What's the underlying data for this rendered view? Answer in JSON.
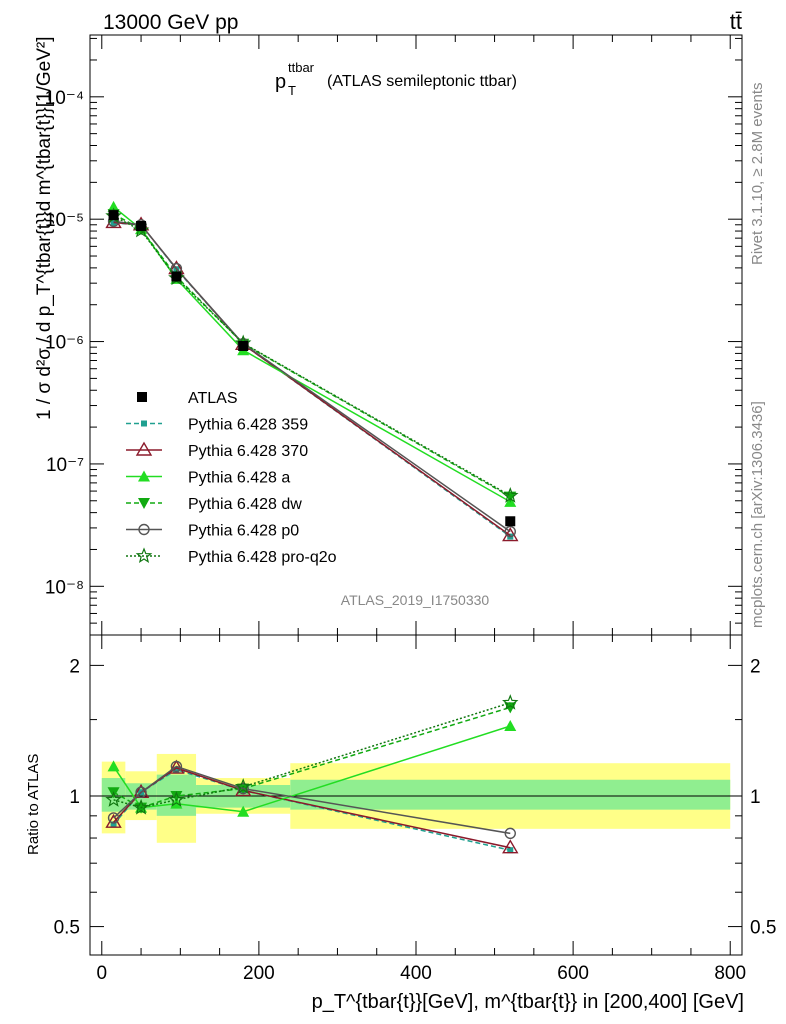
{
  "header": {
    "energy_label": "13000 GeV pp",
    "process_label": "tt̄",
    "plot_title_main": "p",
    "plot_title_sub": "T",
    "plot_title_sup": "ttbar",
    "plot_title_rest": "(ATLAS semileptonic ttbar)",
    "analysis_id": "ATLAS_2019_I1750330",
    "rivet_label": "Rivet 3.1.10, ≥ 2.8M events",
    "mcplots_label": "mcplots.cern.ch [arXiv:1306.3436]"
  },
  "axes": {
    "ylabel_main": "1 / σ d²σ / d p_T^{tbar{t}}d m^{tbar{t}}[1/GeV²]",
    "ylabel_ratio": "Ratio to ATLAS",
    "xlabel": "p_T^{tbar{t}}[GeV], m^{tbar{t}} in [200,400] [GeV]",
    "main_ytick_labels": [
      "10⁻⁸",
      "10⁻⁷",
      "10⁻⁶",
      "10⁻⁵",
      "10⁻⁴"
    ],
    "ratio_ytick_labels": [
      "0.5",
      "1",
      "2"
    ],
    "xtick_labels": [
      "0",
      "200",
      "400",
      "600",
      "800"
    ]
  },
  "chart_data": {
    "type": "line",
    "x_scale": "linear",
    "main_y_scale": "log",
    "ratio_y_scale": "log",
    "xlim": [
      -15,
      815
    ],
    "main_ylim": [
      4e-09,
      0.00032
    ],
    "ratio_ylim": [
      0.43,
      2.35
    ],
    "bin_edges": [
      0,
      30,
      70,
      120,
      240,
      800
    ],
    "x": [
      15,
      50,
      95,
      180,
      520
    ],
    "data": {
      "name": "ATLAS",
      "values": [
        1.08e-05,
        8.8e-06,
        3.4e-06,
        9.2e-07,
        3.4e-08
      ],
      "ratio_band_stat": [
        [
          0.92,
          1.1
        ],
        [
          0.93,
          1.07
        ],
        [
          0.9,
          1.12
        ],
        [
          0.94,
          1.06
        ],
        [
          0.93,
          1.09
        ]
      ],
      "ratio_band_total": [
        [
          0.82,
          1.2
        ],
        [
          0.88,
          1.14
        ],
        [
          0.78,
          1.25
        ],
        [
          0.91,
          1.1
        ],
        [
          0.84,
          1.19
        ]
      ]
    },
    "series": [
      {
        "name": "Pythia 6.428 359",
        "color": "#20a090",
        "dash": "5,3",
        "marker": "square-small",
        "values": [
          9.3e-06,
          9e-06,
          3.9e-06,
          9.5e-07,
          2.55e-08
        ],
        "ratio": [
          0.86,
          1.02,
          1.15,
          1.03,
          0.75
        ]
      },
      {
        "name": "Pythia 6.428 370",
        "color": "#8b1a2b",
        "dash": "",
        "marker": "triangle-open",
        "values": [
          9.4e-06,
          9e-06,
          3.95e-06,
          9.5e-07,
          2.6e-08
        ],
        "ratio": [
          0.87,
          1.02,
          1.16,
          1.03,
          0.76
        ]
      },
      {
        "name": "Pythia 6.428 a",
        "color": "#22dd22",
        "dash": "",
        "marker": "triangle-filled",
        "values": [
          1.26e-05,
          8.3e-06,
          3.25e-06,
          8.5e-07,
          4.9e-08
        ],
        "ratio": [
          1.17,
          0.94,
          0.96,
          0.92,
          1.45
        ]
      },
      {
        "name": "Pythia 6.428 dw",
        "color": "#11aa11",
        "dash": "5,3",
        "marker": "triangle-down",
        "values": [
          1.1e-05,
          8.3e-06,
          3.4e-06,
          9.6e-07,
          5.4e-08
        ],
        "ratio": [
          1.02,
          0.94,
          1.0,
          1.04,
          1.6
        ]
      },
      {
        "name": "Pythia 6.428 p0",
        "color": "#555555",
        "dash": "",
        "marker": "circle-open",
        "values": [
          9.6e-06,
          9e-06,
          3.95e-06,
          9.6e-07,
          2.8e-08
        ],
        "ratio": [
          0.89,
          1.02,
          1.17,
          1.04,
          0.82
        ]
      },
      {
        "name": "Pythia 6.428 pro-q2o",
        "color": "#117711",
        "dash": "2,2",
        "marker": "star",
        "values": [
          1.06e-05,
          8.1e-06,
          3.3e-06,
          9.7e-07,
          5.5e-08
        ],
        "ratio": [
          0.98,
          0.94,
          0.98,
          1.05,
          1.64
        ]
      }
    ]
  }
}
